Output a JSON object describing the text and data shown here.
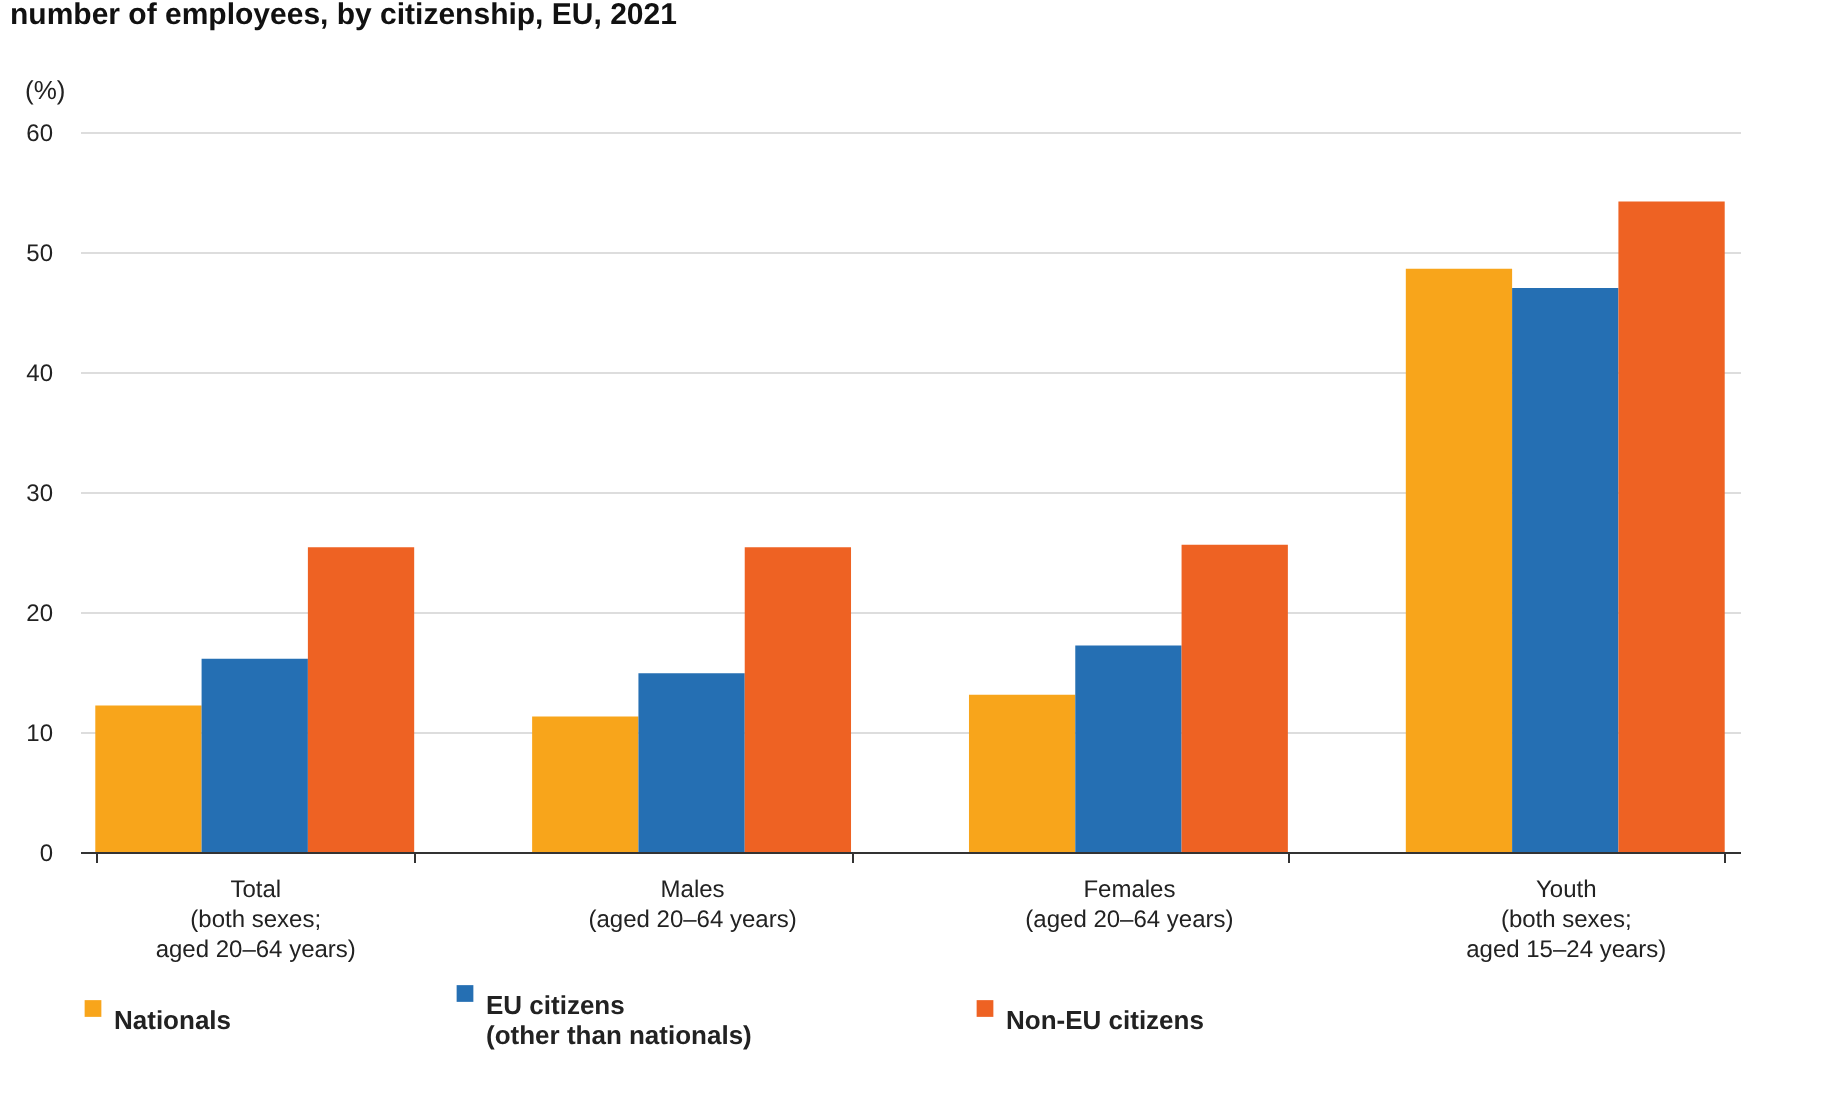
{
  "chart_data": {
    "type": "bar",
    "title": "number of employees, by citizenship, EU, 2021",
    "ylabel": "(%)",
    "categories": [
      "Total\n(both sexes;\naged 20–64 years)",
      "Males\n(aged 20–64 years)",
      "Females\n(aged 20–64 years)",
      "Youth\n(both sexes;\naged 15–24 years)"
    ],
    "series": [
      {
        "name": "Nationals",
        "color": "#f8a51b",
        "values": [
          12.2,
          11.3,
          13.1,
          48.6
        ]
      },
      {
        "name": "EU citizens\n(other than nationals)",
        "color": "#256fb3",
        "values": [
          16.1,
          14.9,
          17.2,
          47.0
        ]
      },
      {
        "name": "Non-EU citizens",
        "color": "#ee6223",
        "values": [
          25.4,
          25.4,
          25.6,
          54.2
        ]
      }
    ],
    "ylim": [
      0,
      60
    ],
    "yticks": [
      0,
      10,
      20,
      30,
      40,
      50,
      60
    ],
    "grid": "y",
    "legend": "bottom"
  }
}
